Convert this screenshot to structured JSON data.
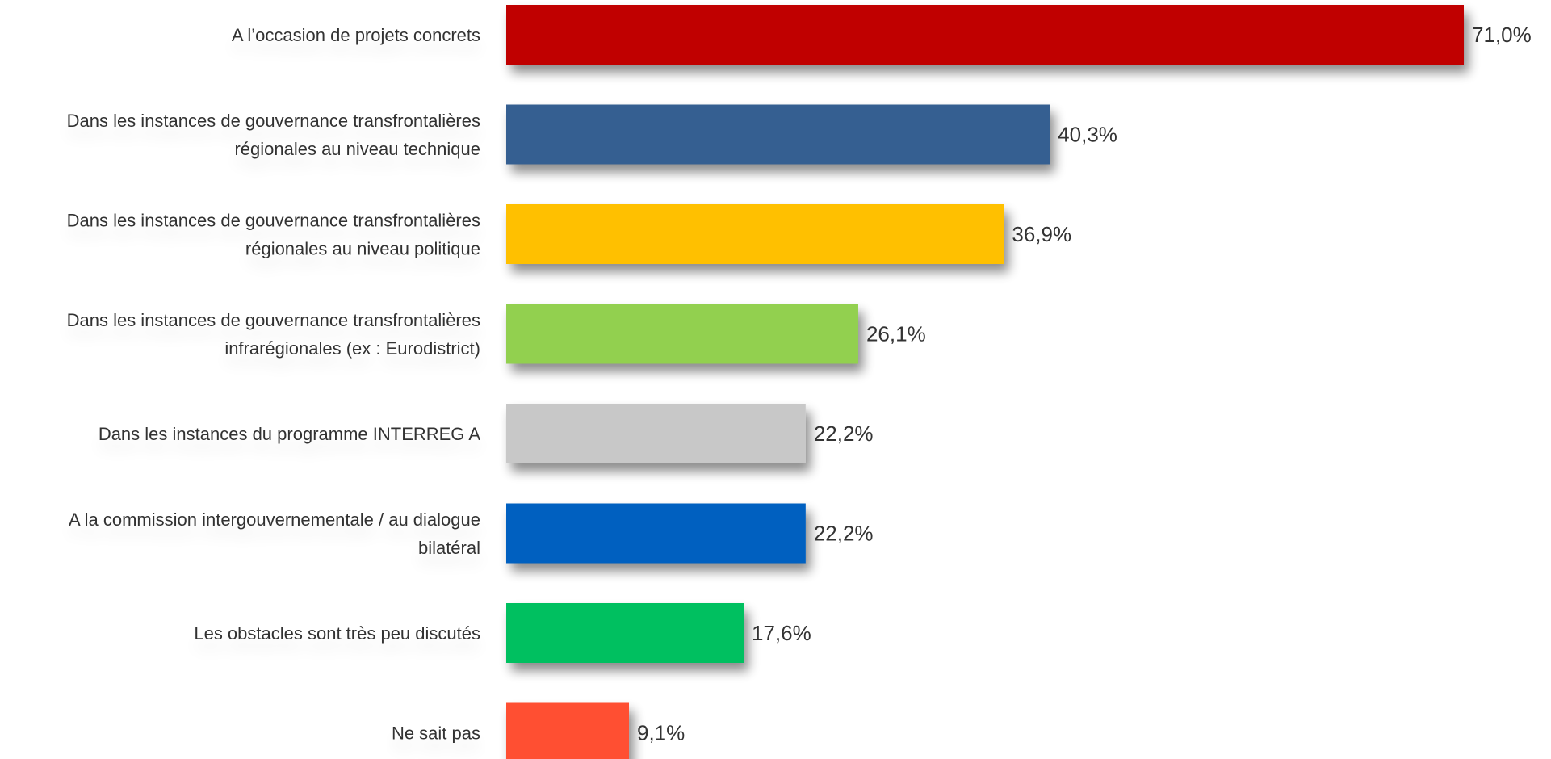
{
  "chart_data": {
    "type": "bar",
    "orientation": "horizontal",
    "categories": [
      [
        "A l’occasion de projets concrets"
      ],
      [
        "Dans les instances de gouvernance transfrontalières",
        "régionales au niveau technique"
      ],
      [
        "Dans les instances de gouvernance transfrontalières",
        "régionales au niveau politique"
      ],
      [
        "Dans les instances de gouvernance transfrontalières",
        "infrarégionales (ex : Eurodistrict)"
      ],
      [
        "Dans les instances du programme INTERREG A"
      ],
      [
        "A la commission intergouvernementale / au dialogue",
        "bilatéral"
      ],
      [
        "Les obstacles sont très peu discutés"
      ],
      [
        "Ne sait pas"
      ]
    ],
    "values": [
      71.0,
      40.3,
      36.9,
      26.1,
      22.2,
      22.2,
      17.6,
      9.1
    ],
    "value_labels": [
      "71,0%",
      "40,3%",
      "36,9%",
      "26,1%",
      "22,2%",
      "22,2%",
      "17,6%",
      "9,1%"
    ],
    "colors": [
      "#C00000",
      "#355F91",
      "#FFC000",
      "#92D050",
      "#C8C8C8",
      "#0060C0",
      "#00C060",
      "#FF5030"
    ],
    "xlim": [
      0,
      71.0
    ],
    "grid": false,
    "legend": "none",
    "title": "",
    "xlabel": "",
    "ylabel": ""
  }
}
